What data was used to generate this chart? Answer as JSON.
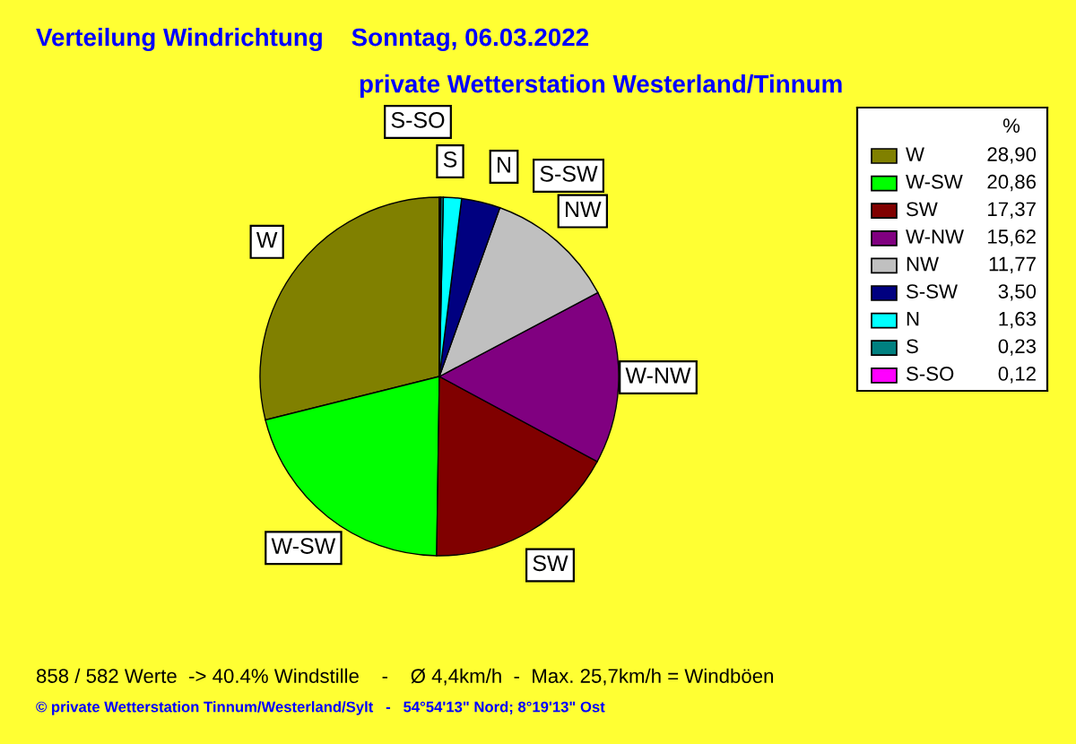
{
  "chart_data": {
    "type": "pie",
    "title": "Verteilung Windrichtung    Sonntag, 06.03.2022",
    "subtitle": "private Wetterstation Westerland/Tinnum",
    "legend_title": "%",
    "categories": [
      "W",
      "W-SW",
      "SW",
      "W-NW",
      "NW",
      "S-SW",
      "N",
      "S",
      "S-SO"
    ],
    "values": [
      28.9,
      20.86,
      17.37,
      15.62,
      11.77,
      3.5,
      1.63,
      0.23,
      0.12
    ],
    "value_labels": [
      "28,90",
      "20,86",
      "17,37",
      "15,62",
      "11,77",
      "3,50",
      "1,63",
      "0,23",
      "0,12"
    ],
    "colors": [
      "#808000",
      "#00ff00",
      "#800000",
      "#800080",
      "#c0c0c0",
      "#000080",
      "#00ffff",
      "#008080",
      "#ff00ff"
    ],
    "legend": "right",
    "annotations": [
      "858 / 582 Werte  -> 40.4% Windstille    -    Ø 4,4km/h  -  Max. 25,7km/h = Windböen",
      "© private Wetterstation Tinnum/Westerland/Sylt   -   54°54'13\" Nord; 8°19'13\" Ost"
    ]
  }
}
